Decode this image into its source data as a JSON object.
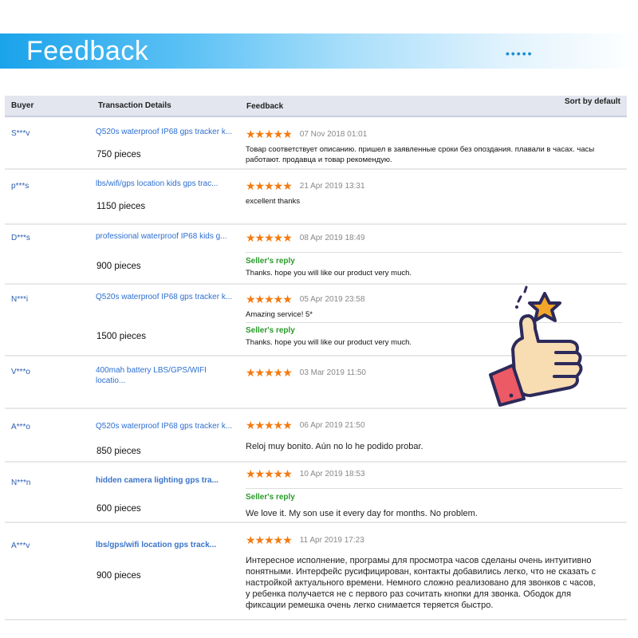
{
  "banner": {
    "title": "Feedback",
    "dots": "•••••"
  },
  "table": {
    "headers": {
      "buyer": "Buyer",
      "transaction": "Transaction Details",
      "feedback": "Feedback",
      "sort": "Sort by default"
    }
  },
  "rows": [
    {
      "buyer": "S***v",
      "product": "Q520s waterproof IP68 gps tracker k...",
      "pieces": "750 pieces",
      "rating": 5,
      "date": "07 Nov 2018 01:01",
      "text": "Товар соответствует описанию. пришел в заявленные сроки без опоздания. плавали в часах. часы работают. продавца и товар рекомендую."
    },
    {
      "buyer": "p***s",
      "product": "lbs/wifi/gps location kids gps trac...",
      "pieces": "1150 pieces",
      "rating": 5,
      "date": "21 Apr 2019 13:31",
      "text": "excellent thanks"
    },
    {
      "buyer": "D***s",
      "product": "professional waterproof IP68 kids g...",
      "pieces": "900 pieces",
      "rating": 5,
      "date": "08 Apr 2019 18:49",
      "reply_label": "Seller's reply",
      "reply": "Thanks. hope you will like our product very much."
    },
    {
      "buyer": "N***i",
      "product": "Q520s waterproof IP68 gps tracker k...",
      "pieces": "1500 pieces",
      "rating": 5,
      "date": "05 Apr 2019 23:58",
      "text": "Amazing service! 5*",
      "reply_label": "Seller's reply",
      "reply": "Thanks. hope you will like our product very much."
    },
    {
      "buyer": "V***o",
      "product": "400mah battery LBS/GPS/WIFI locatio...",
      "rating": 5,
      "date": "03 Mar 2019 11:50"
    },
    {
      "buyer": "A***o",
      "product": "Q520s waterproof IP68 gps tracker k...",
      "pieces": "850 pieces",
      "rating": 5,
      "date": "06 Apr 2019 21:50",
      "text": "Reloj muy bonito. Aún no lo he podido probar."
    },
    {
      "buyer": "N***n",
      "product": "hidden camera lighting gps tra...",
      "pieces": "600 pieces",
      "rating": 5,
      "date": "10 Apr 2019 18:53",
      "reply_label": "Seller's reply",
      "reply": "We love it. My son use it every day for months. No problem."
    },
    {
      "buyer": "A***v",
      "product": "lbs/gps/wifi location gps track...",
      "pieces": "900 pieces",
      "rating": 5,
      "date": "11 Apr 2019 17:23",
      "text": "Интересное исполнение, програмы для просмотра часов сделаны очень интуитивно понятными. Интерфейс русифицирован, контакты добавились легко, что не сказать с настройкой актуального времени. Немного сложно реализовано для звонков с часов, у ребенка получается не с первого раз сочитать кнопки для звонка. Ободок для фиксации ремешка очень легко снимается теряется быстро."
    }
  ],
  "stars_glyph": "★★★★★",
  "colors": {
    "accent": "#1aa3ea",
    "link": "#2d6fd1",
    "star": "#f47a10",
    "reply": "#2a9a2a"
  }
}
